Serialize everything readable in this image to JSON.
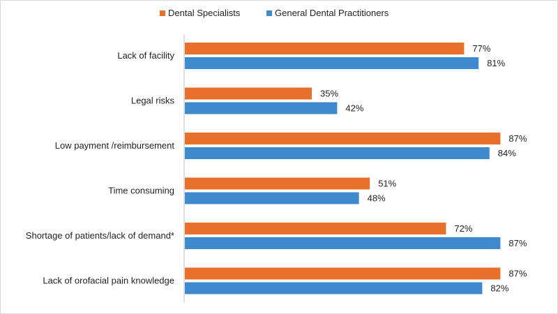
{
  "chart_data": {
    "type": "bar",
    "orientation": "horizontal",
    "categories": [
      "Lack of facility",
      "Legal risks",
      "Low payment /reimbursement",
      "Time consuming",
      "Shortage of patients/lack of demand*",
      "Lack of orofacial pain knowledge"
    ],
    "series": [
      {
        "name": "Dental Specialists",
        "color": "#E8702A",
        "values": [
          77,
          35,
          87,
          51,
          72,
          87
        ],
        "labels": [
          "77%",
          "35%",
          "87%",
          "51%",
          "72%",
          "87%"
        ]
      },
      {
        "name": "General Dental Practitioners",
        "color": "#3F89CE",
        "values": [
          81,
          42,
          84,
          48,
          87,
          82
        ],
        "labels": [
          "81%",
          "42%",
          "84%",
          "48%",
          "87%",
          "82%"
        ]
      }
    ],
    "value_unit": "%",
    "xlim": [
      0,
      100
    ],
    "grid": false,
    "legend_position": "top"
  }
}
